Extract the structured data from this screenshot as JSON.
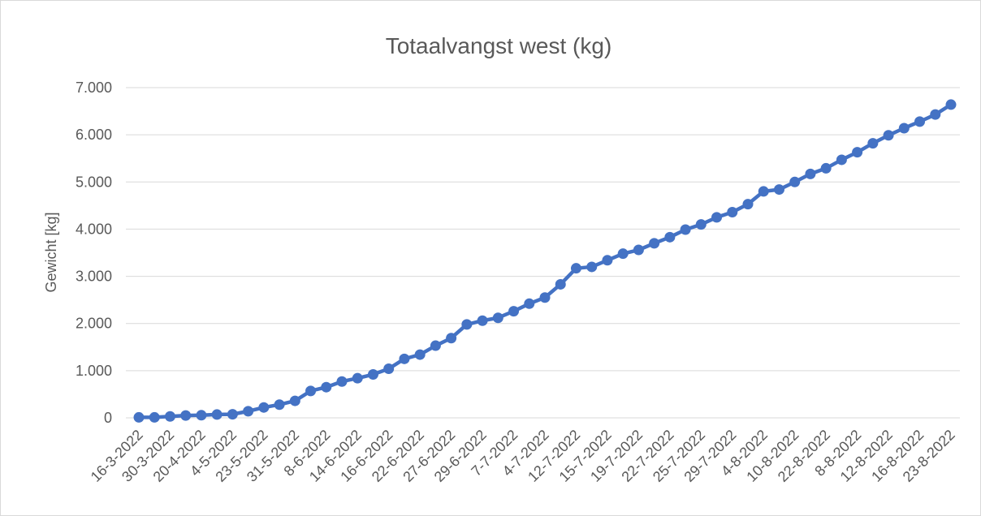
{
  "chart_data": {
    "type": "line",
    "title": "Totaalvangst west (kg)",
    "y_label": "Gewicht [kg]",
    "categories": [
      "16-3-2022",
      null,
      "30-3-2022",
      null,
      "20-4-2022",
      null,
      "4-5-2022",
      null,
      "23-5-2022",
      null,
      "31-5-2022",
      null,
      "8-6-2022",
      null,
      "14-6-2022",
      null,
      "16-6-2022",
      null,
      "22-6-2022",
      null,
      "27-6-2022",
      null,
      "29-6-2022",
      null,
      "7-7-2022",
      null,
      "4-7-2022",
      null,
      "12-7-2022",
      null,
      "15-7-2022",
      null,
      "19-7-2022",
      null,
      "22-7-2022",
      null,
      "25-7-2022",
      null,
      "29-7-2022",
      null,
      "4-8-2022",
      null,
      "10-8-2022",
      null,
      "22-8-2022",
      null,
      "8-8-2022",
      null,
      "12-8-2022",
      null,
      "16-8-2022",
      null,
      "23-8-2022"
    ],
    "series": [
      {
        "name": "Totaalvangst west",
        "color": "#4472c4",
        "values": [
          10,
          10,
          30,
          50,
          55,
          70,
          75,
          140,
          220,
          280,
          360,
          570,
          650,
          770,
          840,
          920,
          1040,
          1250,
          1340,
          1530,
          1690,
          1980,
          2060,
          2120,
          2260,
          2420,
          2550,
          2830,
          3170,
          3200,
          3340,
          3480,
          3560,
          3700,
          3830,
          3990,
          4100,
          4250,
          4360,
          4530,
          4800,
          4840,
          5000,
          5170,
          5290,
          5470,
          5630,
          5820,
          5990,
          6140,
          6280,
          6430,
          6640
        ]
      }
    ],
    "ylim": [
      0,
      7000
    ],
    "yticks": [
      0,
      {
        "value": 1000,
        "label": "1.000"
      },
      {
        "value": 2000,
        "label": "2.000"
      },
      {
        "value": 3000,
        "label": "3.000"
      },
      {
        "value": 4000,
        "label": "4.000"
      },
      {
        "value": 5000,
        "label": "5.000"
      },
      {
        "value": 6000,
        "label": "6.000"
      },
      {
        "value": 7000,
        "label": "7.000"
      }
    ],
    "grid": true
  }
}
